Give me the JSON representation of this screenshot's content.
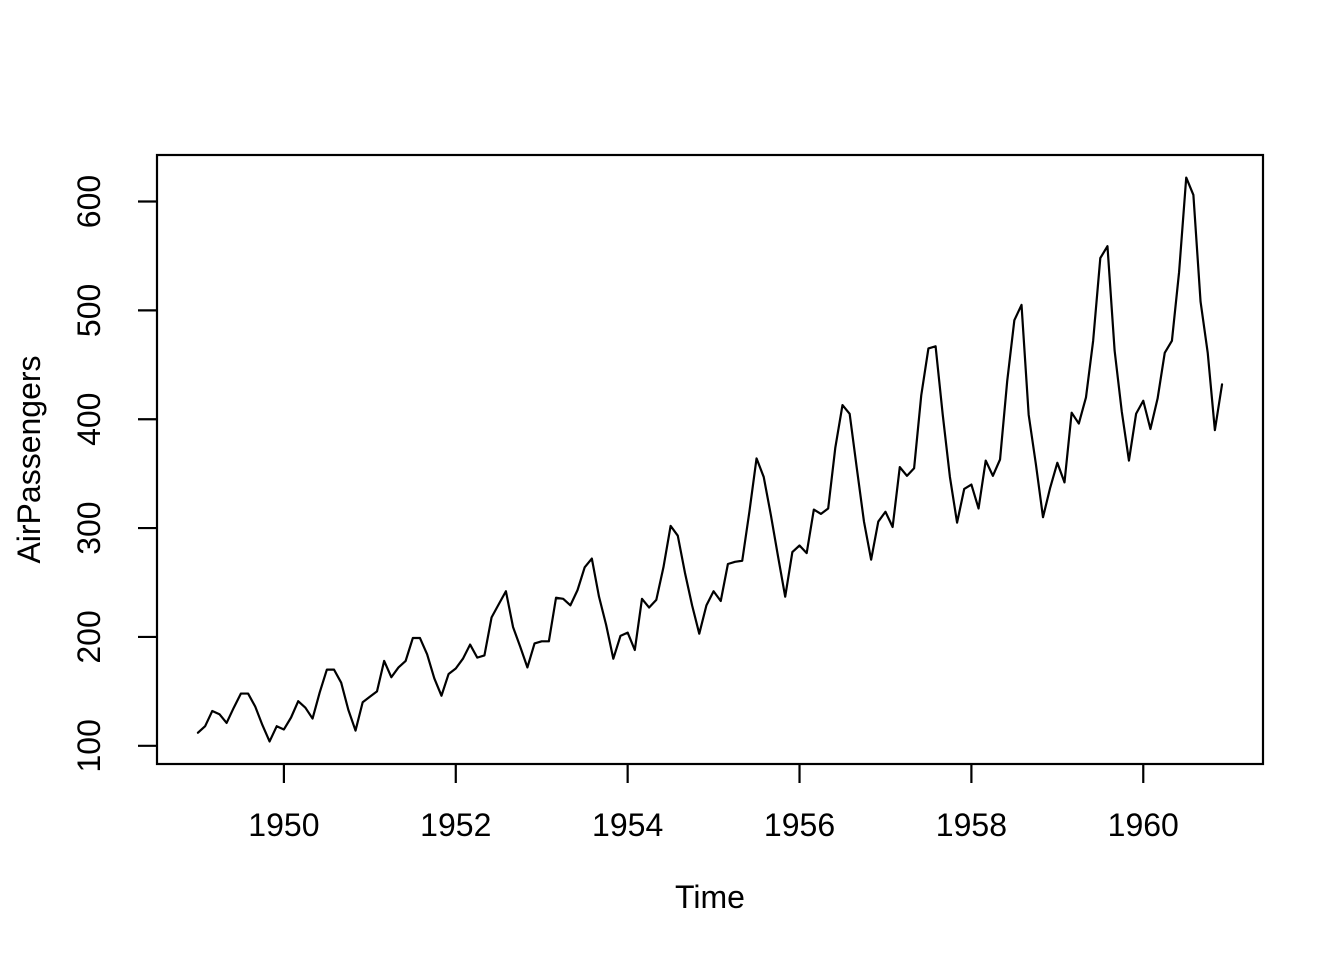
{
  "figure": {
    "background_color": "#ffffff",
    "foreground_color": "#000000"
  },
  "chart_data": {
    "type": "line",
    "title": "",
    "xlabel": "Time",
    "ylabel": "AirPassengers",
    "legend": "none",
    "grid": false,
    "line_color": "#000000",
    "x_axis": {
      "ticks": [
        1950,
        1952,
        1954,
        1956,
        1958,
        1960
      ],
      "tick_labels": [
        "1950",
        "1952",
        "1954",
        "1956",
        "1958",
        "1960"
      ],
      "range": [
        1948.5233,
        1961.3933
      ]
    },
    "y_axis": {
      "ticks": [
        100,
        200,
        300,
        400,
        500,
        600
      ],
      "tick_labels": [
        "100",
        "200",
        "300",
        "400",
        "500",
        "600"
      ],
      "range": [
        83.28,
        642.72
      ]
    },
    "series": [
      {
        "name": "AirPassengers",
        "start_year": 1949,
        "end_year": 1960,
        "frequency": 12,
        "values": [
          112,
          118,
          132,
          129,
          121,
          135,
          148,
          148,
          136,
          119,
          104,
          118,
          115,
          126,
          141,
          135,
          125,
          149,
          170,
          170,
          158,
          133,
          114,
          140,
          145,
          150,
          178,
          163,
          172,
          178,
          199,
          199,
          184,
          162,
          146,
          166,
          171,
          180,
          193,
          181,
          183,
          218,
          230,
          242,
          209,
          191,
          172,
          194,
          196,
          196,
          236,
          235,
          229,
          243,
          264,
          272,
          237,
          211,
          180,
          201,
          204,
          188,
          235,
          227,
          234,
          264,
          302,
          293,
          259,
          229,
          203,
          229,
          242,
          233,
          267,
          269,
          270,
          315,
          364,
          347,
          312,
          274,
          237,
          278,
          284,
          277,
          317,
          313,
          318,
          374,
          413,
          405,
          355,
          306,
          271,
          306,
          315,
          301,
          356,
          348,
          355,
          422,
          465,
          467,
          404,
          347,
          305,
          336,
          340,
          318,
          362,
          348,
          363,
          435,
          491,
          505,
          404,
          359,
          310,
          337,
          360,
          342,
          406,
          396,
          420,
          472,
          548,
          559,
          463,
          407,
          362,
          405,
          417,
          391,
          419,
          461,
          472,
          535,
          622,
          606,
          508,
          461,
          390,
          432
        ]
      }
    ]
  }
}
